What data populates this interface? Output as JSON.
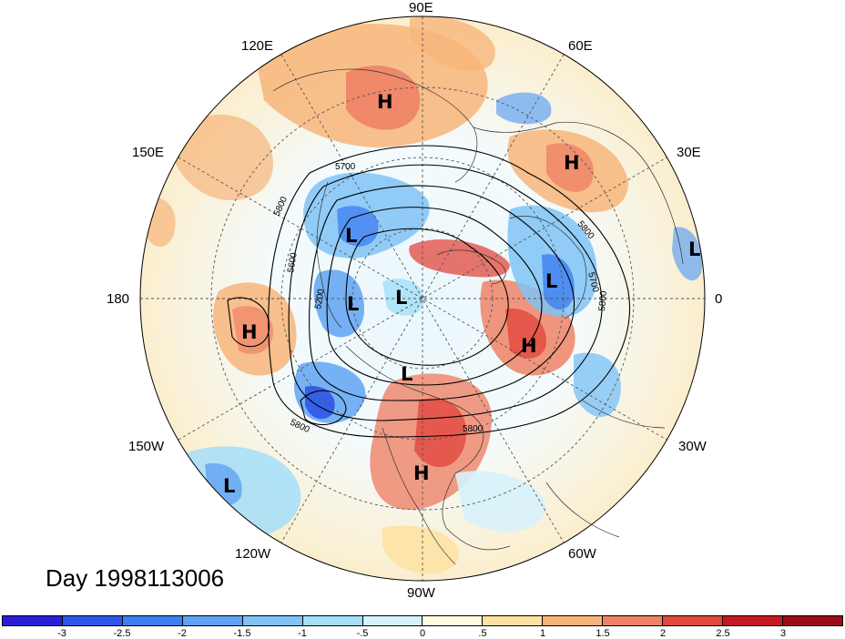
{
  "title": "Day 1998113006",
  "longitude_labels": {
    "lon_90e": "90E",
    "lon_120e": "120E",
    "lon_60e": "60E",
    "lon_150e": "150E",
    "lon_30e": "30E",
    "lon_180": "180",
    "lon_0": "0",
    "lon_150w": "150W",
    "lon_30w": "30W",
    "lon_120w": "120W",
    "lon_60w": "60W",
    "lon_90w": "90W"
  },
  "pressure_centers": [
    {
      "type": "H"
    },
    {
      "type": "H"
    },
    {
      "type": "L"
    },
    {
      "type": "L"
    },
    {
      "type": "L"
    },
    {
      "type": "L"
    },
    {
      "type": "L"
    },
    {
      "type": "H"
    },
    {
      "type": "H"
    },
    {
      "type": "L"
    },
    {
      "type": "L"
    },
    {
      "type": "H"
    },
    {
      "type": "L"
    }
  ],
  "contour_labels": [
    "5700",
    "5800",
    "5600",
    "5200",
    "5800",
    "5800",
    "5800",
    "5700",
    "5800"
  ],
  "colorbar": {
    "ticks": [
      "-3",
      "-2.5",
      "-2",
      "-1.5",
      "-1",
      "-.5",
      "0",
      ".5",
      "1",
      "1.5",
      "2",
      "2.5",
      "3"
    ],
    "colors": [
      "#2a1fd6",
      "#2f56e8",
      "#3d7ef0",
      "#5fa3f2",
      "#7fc3f6",
      "#a4def9",
      "#d6f2fb",
      "#fffde0",
      "#fde2a4",
      "#f7b57a",
      "#ee8266",
      "#e2473e",
      "#c41a22",
      "#9c0d18"
    ]
  }
}
